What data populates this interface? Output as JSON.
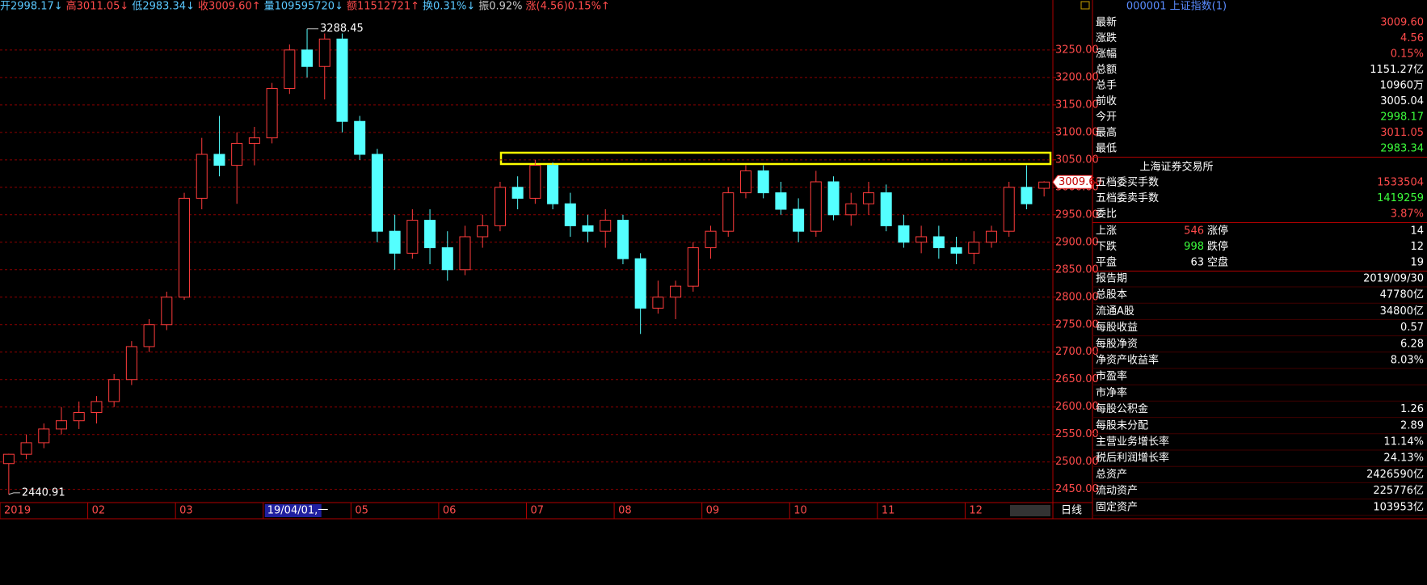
{
  "chart_data": {
    "type": "candlestick",
    "categories": [
      "2019",
      null,
      null,
      null,
      null,
      "02",
      null,
      null,
      null,
      null,
      "03",
      null,
      null,
      null,
      null,
      "19/04/01,一",
      null,
      null,
      null,
      null,
      "05",
      null,
      null,
      null,
      null,
      "06",
      null,
      null,
      null,
      null,
      "07",
      null,
      null,
      null,
      null,
      "08",
      null,
      null,
      null,
      null,
      "09",
      null,
      null,
      null,
      null,
      "10",
      null,
      null,
      null,
      null,
      "11",
      null,
      null,
      null,
      null,
      "12",
      null,
      null,
      null,
      null
    ],
    "open": [
      2497,
      2514,
      2535,
      2560,
      2575,
      2590,
      2610,
      2650,
      2710,
      2750,
      2800,
      2980,
      3060,
      3040,
      3080,
      3090,
      3180,
      3250,
      3220,
      3270,
      3120,
      3060,
      2920,
      2880,
      2940,
      2890,
      2850,
      2910,
      2930,
      3000,
      2980,
      3040,
      2970,
      2930,
      2920,
      2940,
      2870,
      2780,
      2800,
      2820,
      2890,
      2920,
      2990,
      3030,
      2990,
      2960,
      2920,
      3010,
      2950,
      2970,
      2990,
      2930,
      2900,
      2910,
      2890,
      2880,
      2900,
      2920,
      3000,
      2998.17
    ],
    "high": [
      2515,
      2550,
      2570,
      2600,
      2610,
      2620,
      2660,
      2720,
      2760,
      2810,
      2990,
      3090,
      3130,
      3100,
      3110,
      3190,
      3260,
      3288.45,
      3280,
      3280,
      3130,
      3070,
      2950,
      2960,
      2960,
      2920,
      2930,
      2950,
      3010,
      3020,
      3050,
      3045,
      2990,
      2950,
      2960,
      2950,
      2880,
      2830,
      2830,
      2900,
      2930,
      3000,
      3040,
      3040,
      3010,
      2980,
      3030,
      3020,
      2990,
      3010,
      3005,
      2950,
      2930,
      2930,
      2910,
      2920,
      2930,
      3010,
      3040,
      3011.05
    ],
    "low": [
      2440.91,
      2505,
      2525,
      2550,
      2560,
      2570,
      2600,
      2640,
      2700,
      2740,
      2795,
      2960,
      3020,
      2970,
      3040,
      3080,
      3170,
      3200,
      3160,
      3100,
      3050,
      2900,
      2850,
      2870,
      2860,
      2830,
      2840,
      2890,
      2920,
      2960,
      2970,
      2960,
      2910,
      2900,
      2890,
      2860,
      2733,
      2770,
      2760,
      2810,
      2870,
      2910,
      2980,
      2980,
      2950,
      2900,
      2910,
      2940,
      2930,
      2950,
      2920,
      2890,
      2880,
      2870,
      2860,
      2860,
      2890,
      2910,
      2960,
      2983.34
    ],
    "close": [
      2514,
      2535,
      2560,
      2575,
      2590,
      2610,
      2650,
      2710,
      2750,
      2800,
      2980,
      3060,
      3040,
      3080,
      3090,
      3180,
      3250,
      3220,
      3270,
      3120,
      3060,
      2920,
      2880,
      2940,
      2890,
      2850,
      2910,
      2930,
      3000,
      2980,
      3040,
      2970,
      2930,
      2920,
      2940,
      2870,
      2780,
      2800,
      2820,
      2890,
      2920,
      2990,
      3030,
      2990,
      2960,
      2920,
      3010,
      2950,
      2970,
      2990,
      2930,
      2900,
      2910,
      2890,
      2880,
      2900,
      2920,
      3000,
      2970,
      3009.6
    ],
    "up_color": "#ff3c3c",
    "down_color": "#54ffff",
    "ylim": [
      2426,
      3341
    ],
    "yticks": [
      {
        "value": 2450,
        "label": "2450.00"
      },
      {
        "value": 2500,
        "label": "2500.00"
      },
      {
        "value": 2550,
        "label": "2550.00"
      },
      {
        "value": 2600,
        "label": "2600.00"
      },
      {
        "value": 2650,
        "label": "2650.00"
      },
      {
        "value": 2700,
        "label": "2700.00"
      },
      {
        "value": 2750,
        "label": "2750.00"
      },
      {
        "value": 2800,
        "label": "2800.00"
      },
      {
        "value": 2850,
        "label": "2850.00"
      },
      {
        "value": 2900,
        "label": "2900.00"
      },
      {
        "value": 2950,
        "label": "2950.00"
      },
      {
        "value": 3000,
        "label": "3000.00"
      },
      {
        "value": 3050,
        "label": "3050.00"
      },
      {
        "value": 3100,
        "label": "3100.00"
      },
      {
        "value": 3150,
        "label": "3150.00"
      },
      {
        "value": 3200,
        "label": "3200.00"
      },
      {
        "value": 3250,
        "label": "3250.00"
      }
    ],
    "grid": true,
    "annotations": [
      {
        "value": 3288.45,
        "label": "3288.45"
      },
      {
        "value": 2440.91,
        "label": "2440.91"
      }
    ],
    "last_price": {
      "value": 3009.6,
      "label": "3009.60"
    },
    "period": "日线"
  },
  "header": [
    {
      "text": "开2998.17↓",
      "color": "#5ac8ff"
    },
    {
      "text": "高3011.05↓",
      "color": "#ff4b4b"
    },
    {
      "text": "低2983.34↓",
      "color": "#5ac8ff"
    },
    {
      "text": "收3009.60↑",
      "color": "#ff4b4b"
    },
    {
      "text": "量109595720↓",
      "color": "#5ac8ff"
    },
    {
      "text": "额11512721↑",
      "color": "#ff4b4b"
    },
    {
      "text": "换0.31%↓",
      "color": "#5ac8ff"
    },
    {
      "text": "振0.92%",
      "color": "#cccccc"
    },
    {
      "text": "涨(4.56)0.15%↑",
      "color": "#ff4b4b"
    }
  ],
  "panel": {
    "title": "000001 上证指数(1)",
    "quote": [
      [
        "最新",
        "3009.60",
        "#ff4b4b"
      ],
      [
        "涨跌",
        "4.56",
        "#ff4b4b"
      ],
      [
        "涨幅",
        "0.15%",
        "#ff4b4b"
      ],
      [
        "总额",
        "1151.27亿",
        "#ffffff"
      ],
      [
        "总手",
        "10960万",
        "#ffffff"
      ],
      [
        "前收",
        "3005.04",
        "#ffffff"
      ],
      [
        "今开",
        "2998.17",
        "#3cff3c"
      ],
      [
        "最高",
        "3011.05",
        "#ff4b4b"
      ],
      [
        "最低",
        "2983.34",
        "#3cff3c"
      ]
    ],
    "exchange": "上海证券交易所",
    "orders": [
      [
        "五档委买手数",
        "1533504",
        "#ff4b4b"
      ],
      [
        "五档委卖手数",
        "1419259",
        "#3cff3c"
      ],
      [
        "委比",
        "3.87%",
        "#ff4b4b"
      ]
    ],
    "breadth": [
      [
        "上涨",
        "546",
        "#ff4b4b",
        "涨停",
        "14"
      ],
      [
        "下跌",
        "998",
        "#3cff3c",
        "跌停",
        "12"
      ],
      [
        "平盘",
        "63",
        "#ffffff",
        "空盘",
        "19"
      ]
    ],
    "finance": [
      [
        "报告期",
        "2019/09/30"
      ],
      [
        "总股本",
        "47780亿"
      ],
      [
        "流通A股",
        "34800亿"
      ],
      [
        "每股收益",
        "0.57"
      ],
      [
        "每股净资",
        "6.28"
      ],
      [
        "净资产收益率",
        "8.03%"
      ],
      [
        "市盈率"
      ],
      [
        "市净率"
      ],
      [
        "每股公积金",
        "1.26"
      ],
      [
        "每股未分配",
        "2.89"
      ],
      [
        "主营业务增长率",
        "11.14%"
      ],
      [
        "税后利润增长率",
        "24.13%"
      ],
      [
        "总资产",
        "2426590亿"
      ],
      [
        "流动资产",
        "225776亿"
      ],
      [
        "固定资产",
        "103953亿"
      ]
    ]
  }
}
